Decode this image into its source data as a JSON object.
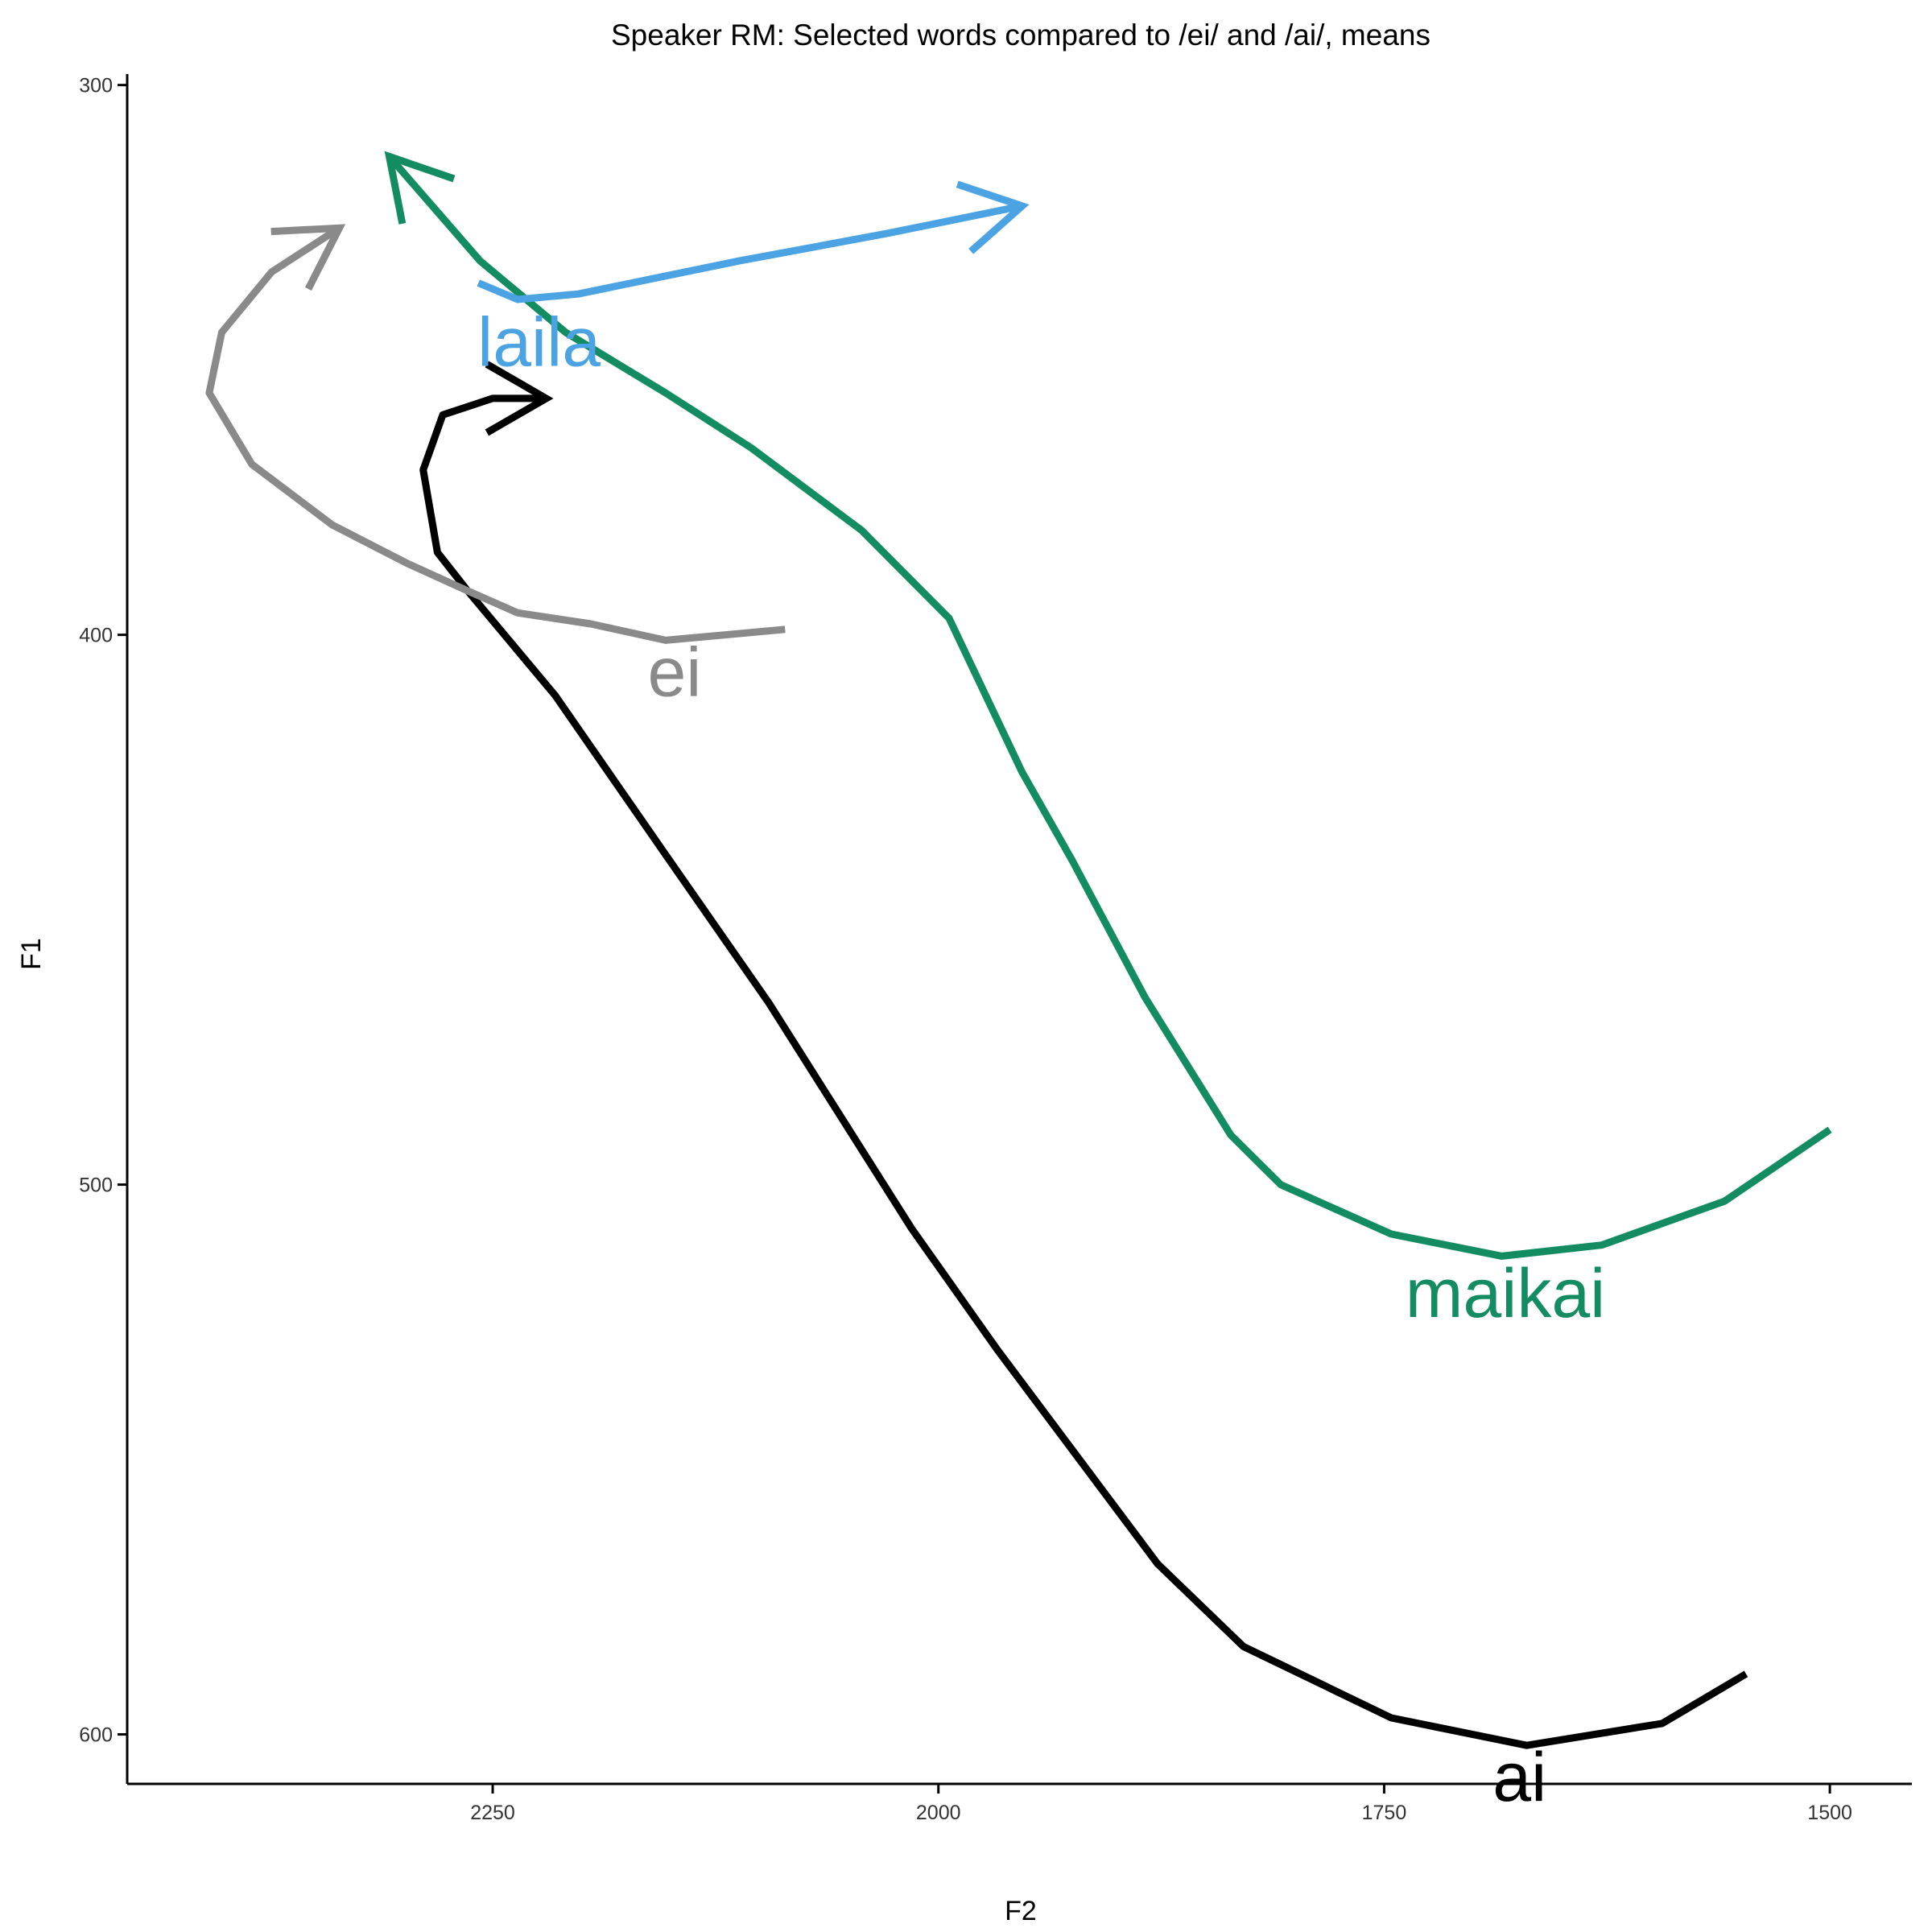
{
  "chart_data": {
    "type": "line",
    "title": "Speaker RM: Selected words compared to /ei/ and /ai/, means",
    "xlabel": "F2",
    "ylabel": "F1",
    "xlim": [
      2455,
      1454
    ],
    "ylim": [
      298,
      609
    ],
    "xticks": [
      2250,
      2000,
      1750,
      1500
    ],
    "yticks": [
      300,
      400,
      500,
      600
    ],
    "arrows": true,
    "series": [
      {
        "name": "ai",
        "color": "#000000",
        "label_at": [
          1674,
          608
        ],
        "x": [
          1547,
          1594,
          1670,
          1746,
          1829,
          1877,
          1967,
          2015,
          2095,
          2153,
          2215,
          2264,
          2281,
          2289,
          2278,
          2250,
          2220
        ],
        "values": [
          589,
          598,
          602,
          597,
          584,
          569,
          530,
          508,
          467,
          440,
          411,
          392,
          385,
          370,
          360,
          357,
          357
        ]
      },
      {
        "name": "maikai",
        "color": "#148c62",
        "label_at": [
          1682,
          520
        ],
        "x": [
          1500,
          1559,
          1628,
          1684,
          1746,
          1808,
          1836,
          1884,
          1925,
          1953,
          1994,
          2043,
          2105,
          2153,
          2209,
          2257,
          2308
        ],
        "values": [
          490,
          503,
          511,
          513,
          509,
          500,
          491,
          466,
          441,
          425,
          397,
          381,
          366,
          356,
          345,
          332,
          313
        ]
      },
      {
        "name": "laila",
        "color": "#4ba3e3",
        "label_at": [
          2224,
          347
        ],
        "x": [
          2258,
          2236,
          2202,
          2112,
          2029,
          1953
        ],
        "values": [
          336,
          339,
          338,
          332,
          327,
          322
        ]
      },
      {
        "name": "ei",
        "color": "#8a8a8a",
        "label_at": [
          2148,
          407
        ],
        "x": [
          2086,
          2153,
          2195,
          2236,
          2264,
          2298,
          2340,
          2385,
          2409,
          2402,
          2374,
          2336
        ],
        "values": [
          399,
          401,
          398,
          396,
          392,
          387,
          380,
          369,
          356,
          345,
          334,
          326
        ]
      }
    ]
  }
}
